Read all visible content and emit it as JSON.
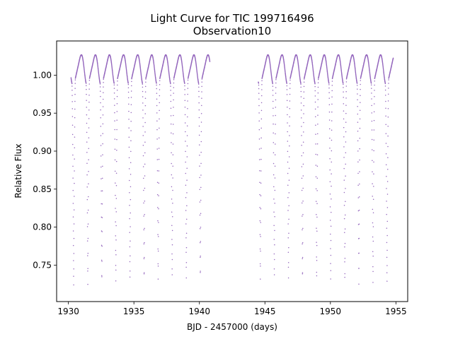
{
  "chart_data": {
    "type": "scatter",
    "title": "Light Curve for TIC 199716496",
    "subtitle": "Observation10",
    "xlabel": "BJD - 2457000 (days)",
    "ylabel": "Relative Flux",
    "xlim": [
      1929.1,
      1955.9
    ],
    "ylim": [
      0.702,
      1.045
    ],
    "xticks": [
      1930,
      1935,
      1940,
      1945,
      1950,
      1955
    ],
    "yticks": [
      0.75,
      0.8,
      0.85,
      0.9,
      0.95,
      1.0
    ],
    "ytick_labels": [
      "0.75",
      "0.80",
      "0.85",
      "0.90",
      "0.95",
      "1.00"
    ],
    "grid": false,
    "marker_color": "#9467bd",
    "series": [
      {
        "segments": [
          {
            "x_start": 1930.2,
            "x_end": 1940.8
          },
          {
            "x_start": 1944.5,
            "x_end": 1954.8
          }
        ],
        "eclipse_times": [
          1930.4,
          1931.48,
          1932.55,
          1933.62,
          1934.7,
          1935.78,
          1936.85,
          1937.92,
          1939.0,
          1940.07,
          1944.65,
          1945.72,
          1946.8,
          1947.87,
          1948.95,
          1950.02,
          1951.1,
          1952.17,
          1953.25,
          1954.32
        ],
        "eclipse_min_flux": [
          0.719,
          0.723,
          0.725,
          0.726,
          0.728,
          0.729,
          0.73,
          0.731,
          0.73,
          0.731,
          0.73,
          0.731,
          0.73,
          0.729,
          0.728,
          0.727,
          0.726,
          0.725,
          0.724,
          0.724
        ],
        "out_of_eclipse_flux_range": [
          0.985,
          1.028
        ]
      }
    ]
  }
}
